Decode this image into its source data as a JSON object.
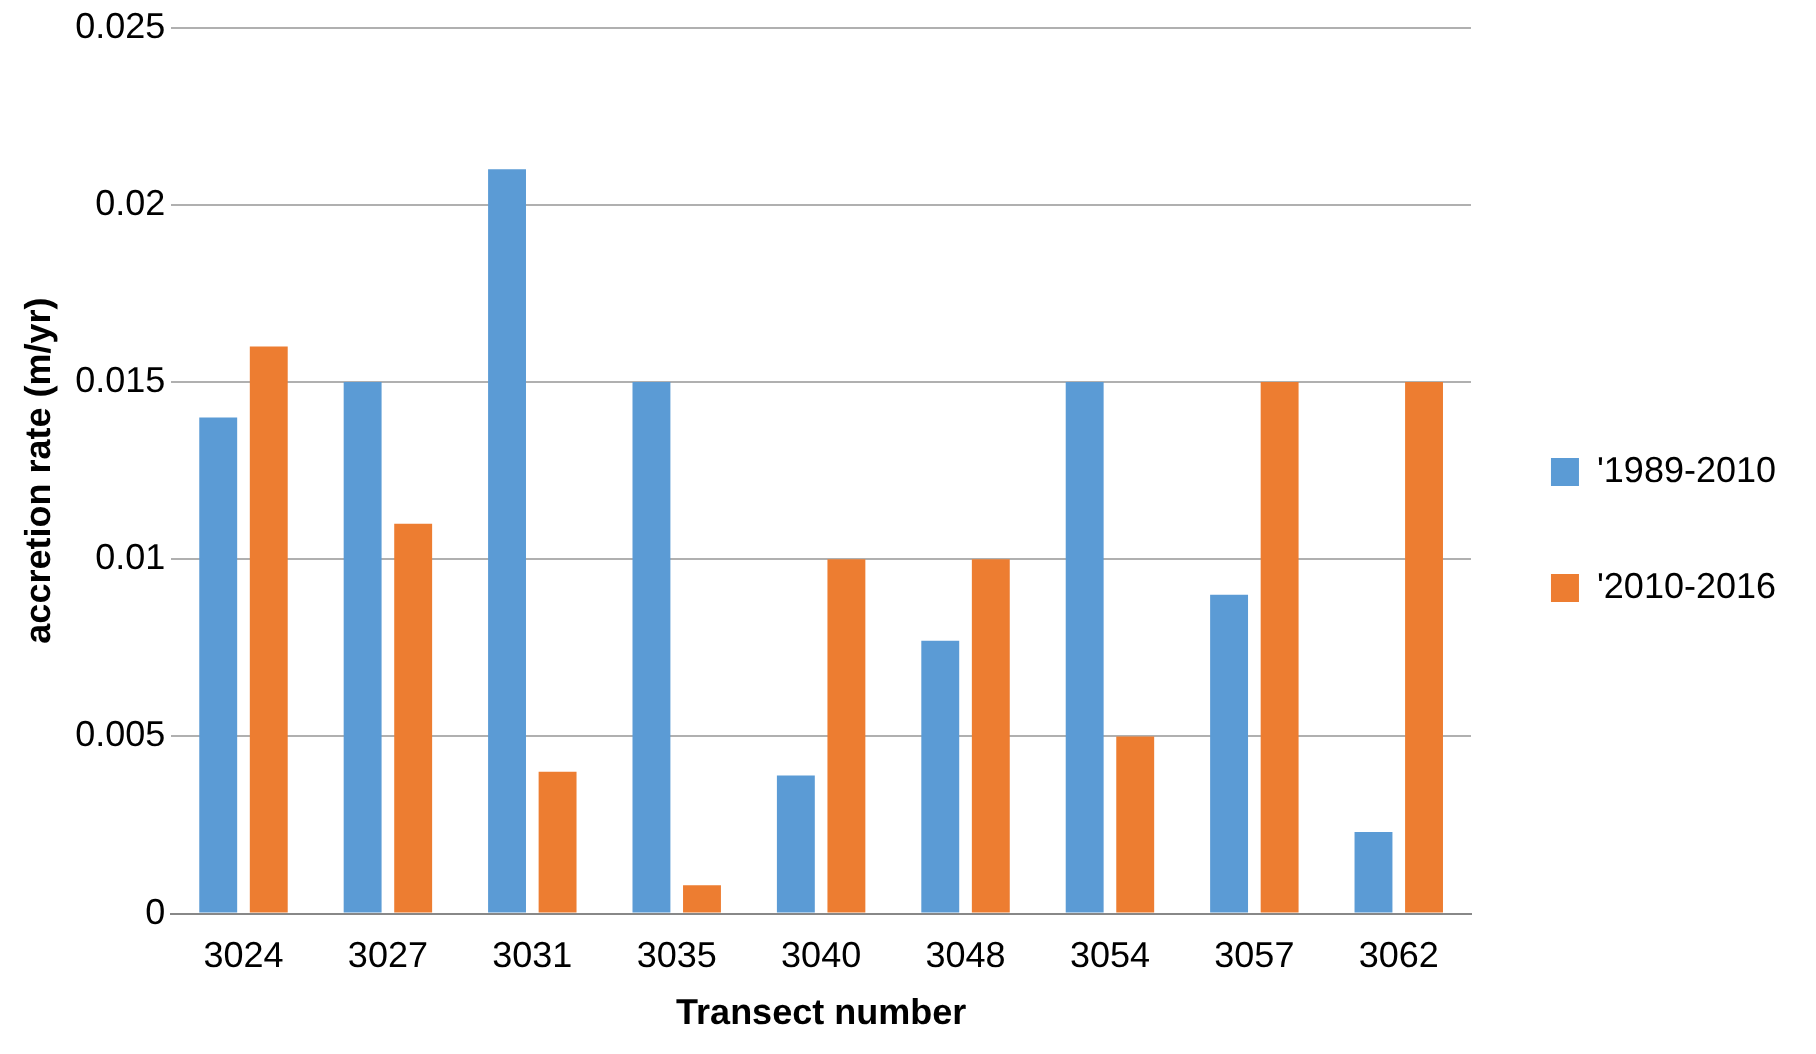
{
  "chart_data": {
    "type": "bar",
    "xlabel": "Transect number",
    "ylabel": "accretion rate (m/yr)",
    "categories": [
      "3024",
      "3027",
      "3031",
      "3035",
      "3040",
      "3048",
      "3054",
      "3057",
      "3062"
    ],
    "series": [
      {
        "name": "'1989-2010",
        "color": "#5b9bd5",
        "values": [
          0.014,
          0.015,
          0.021,
          0.015,
          0.0039,
          0.0077,
          0.015,
          0.009,
          0.0023
        ]
      },
      {
        "name": "'2010-2016",
        "color": "#ed7d31",
        "values": [
          0.016,
          0.011,
          0.004,
          0.0008,
          0.01,
          0.01,
          0.005,
          0.015,
          0.015
        ]
      }
    ],
    "ylim": [
      0,
      0.025
    ],
    "yticks": [
      0,
      0.005,
      0.01,
      0.015,
      0.02,
      0.025
    ],
    "grid": "y",
    "legend": "right"
  }
}
